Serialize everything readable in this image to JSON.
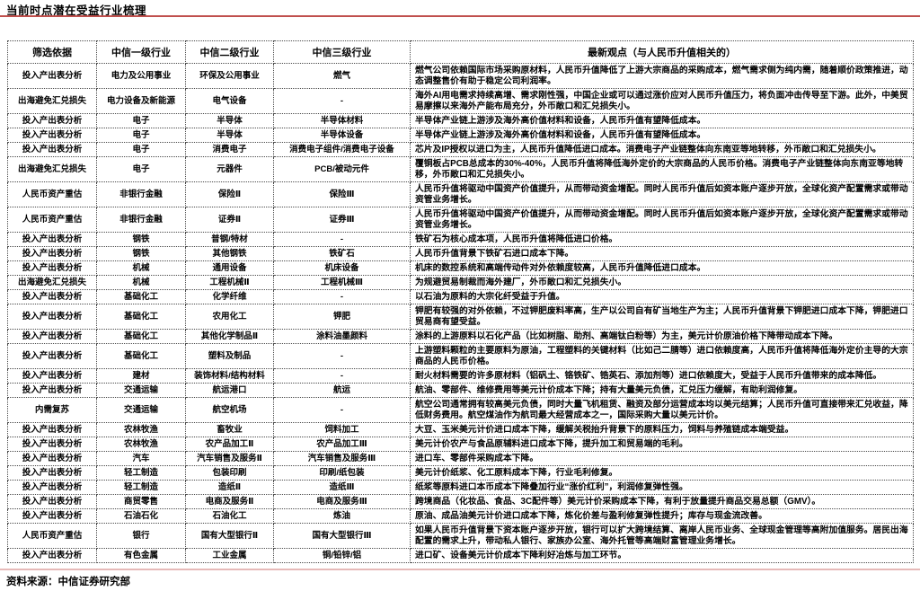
{
  "title": "当前时点潜在受益行业梳理",
  "source": "资料来源：中信证券研究部",
  "colors": {
    "rule_red": "#c0504d",
    "rule_pink": "#e6b9b8",
    "text": "#000000",
    "border": "#4a4a4a"
  },
  "table": {
    "headers": [
      "筛选依据",
      "中信一级行业",
      "中信二级行业",
      "中信三级行业",
      "最新观点（与人民币升值相关的）"
    ],
    "rows": [
      [
        "投入产出表分析",
        "电力及公用事业",
        "环保及公用事业",
        "燃气",
        "燃气公司依赖国际市场采购原材料，人民币升值降低了上游大宗商品的采购成本，燃气需求侧为纯内需，随着顺价政策推进，动态调整售价有助于稳定公司利润率。"
      ],
      [
        "出海避免汇兑损失",
        "电力设备及新能源",
        "电气设备",
        "-",
        "海外AI用电需求持续高增、需求刚性强，中国企业或可以通过涨价应对人民币升值压力，将负面冲击传导至下游。此外，中美贸易摩擦以来海外产能布局充分，外币敞口和汇兑损失小。"
      ],
      [
        "投入产出表分析",
        "电子",
        "半导体",
        "半导体材料",
        "半导体产业链上游涉及海外高价值材料和设备，人民币升值有望降低成本。"
      ],
      [
        "投入产出表分析",
        "电子",
        "半导体",
        "半导体设备",
        "半导体产业链上游涉及海外高价值材料和设备，人民币升值有望降低成本。"
      ],
      [
        "投入产出表分析",
        "电子",
        "消费电子",
        "消费电子组件/消费电子设备",
        "芯片及IP授权以进口为主，人民币升值降低进口成本。消费电子产业链整体向东南亚等地转移，外币敞口和汇兑损失小。"
      ],
      [
        "出海避免汇兑损失",
        "电子",
        "元器件",
        "PCB/被动元件",
        "覆铜板占PCB总成本的30%-40%，人民币升值将降低海外定价的大宗商品的人民币价格。消费电子产业链整体向东南亚等地转移，外币敞口和汇兑损失小。"
      ],
      [
        "人民币资产重估",
        "非银行金融",
        "保险Ⅱ",
        "保险Ⅲ",
        "人民币升值将驱动中国资产价值提升，从而带动资金增配。同时人民币升值后如资本账户逐步开放，全球化资产配置需求或带动资管业务增长。"
      ],
      [
        "人民币资产重估",
        "非银行金融",
        "证券Ⅱ",
        "证券Ⅲ",
        "人民币升值将驱动中国资产价值提升，从而带动资金增配。同时人民币升值后如资本账户逐步开放，全球化资产配置需求或带动资管业务增长。"
      ],
      [
        "投入产出表分析",
        "钢铁",
        "普钢/特材",
        "-",
        "铁矿石为核心成本项，人民币升值将降低进口价格。"
      ],
      [
        "投入产出表分析",
        "钢铁",
        "其他钢铁",
        "铁矿石",
        "人民币升值背景下铁矿石进口成本下降。"
      ],
      [
        "投入产出表分析",
        "机械",
        "通用设备",
        "机床设备",
        "机床的数控系统和高端传动件对外依赖度较高，人民币升值降低进口成本。"
      ],
      [
        "出海避免汇兑损失",
        "机械",
        "工程机械Ⅱ",
        "工程机械Ⅲ",
        "为规避贸易制裁而海外建厂，外币敞口和汇兑损失小。"
      ],
      [
        "投入产出表分析",
        "基础化工",
        "化学纤维",
        "-",
        "以石油为原料的大宗化纤受益于升值。"
      ],
      [
        "投入产出表分析",
        "基础化工",
        "农用化工",
        "钾肥",
        "钾肥有较强的对外依赖，不过钾肥废料率高，生产以公司自有矿当地生产为主；人民币升值背景下钾肥进口成本下降，钾肥进口贸易商有望受益。"
      ],
      [
        "投入产出表分析",
        "基础化工",
        "其他化学制品Ⅱ",
        "涂料油墨颜料",
        "涂料的上游原料以石化产品（比如树脂、助剂、高端钛白粉等）为主，美元计价原油价格下降带动成本下降。"
      ],
      [
        "投入产出表分析",
        "基础化工",
        "塑料及制品",
        "-",
        "上游塑料颗粒的主要原料为原油，工程塑料的关键材料（比如己二腈等）进口依赖度高，人民币升值将降低海外定价主导的大宗商品的人民币价格。"
      ],
      [
        "投入产出表分析",
        "建材",
        "装饰材料/结构材料",
        "-",
        "耐火材料需要的许多原材料（铝矾土、铬铁矿、锆英石、添加剂等）进口依赖度大，受益于人民币升值带来的成本降低。"
      ],
      [
        "投入产出表分析",
        "交通运输",
        "航运港口",
        "航运",
        "航油、零部件、维修费用等美元计价成本下降；持有大量美元负债，汇兑压力缓解，有助利润修复。"
      ],
      [
        "内需复苏",
        "交通运输",
        "航空机场",
        "-",
        "航空公司通常拥有较高美元负债，同时大量飞机租赁、融资及部分运营成本均以美元结算；人民币升值可直接带来汇兑收益，降低财务费用。航空煤油作为航司最大经营成本之一，国际采购大量以美元计价。"
      ],
      [
        "投入产出表分析",
        "农林牧渔",
        "畜牧业",
        "饲料加工",
        "大豆、玉米美元计价进口成本下降，缓解关税抬升背景下的原料压力，饲料与养殖链成本端受益。"
      ],
      [
        "投入产出表分析",
        "农林牧渔",
        "农产品加工Ⅱ",
        "农产品加工Ⅲ",
        "美元计价农产与食品原辅料进口成本下降，提升加工和贸易端的毛利。"
      ],
      [
        "投入产出表分析",
        "汽车",
        "汽车销售及服务Ⅱ",
        "汽车销售及服务Ⅲ",
        "进口车、零部件采购成本下降。"
      ],
      [
        "投入产出表分析",
        "轻工制造",
        "包装印刷",
        "印刷/纸包装",
        "美元计价纸浆、化工原料成本下降，行业毛利修复。"
      ],
      [
        "投入产出表分析",
        "轻工制造",
        "造纸Ⅱ",
        "造纸Ⅲ",
        "纸浆等原料进口本币成本下降叠加行业“涨价红利”，利润修复弹性强。"
      ],
      [
        "投入产出表分析",
        "商贸零售",
        "电商及服务Ⅱ",
        "电商及服务Ⅲ",
        "跨境商品（化妆品、食品、3C配件等）美元计价采购成本下降，有利于放量提升商品交易总额（GMV）。"
      ],
      [
        "投入产出表分析",
        "石油石化",
        "石油化工",
        "炼油",
        "原油、成品油美元计价进口成本下降，炼化价差与盈利修复弹性提升；库存与现金流改善。"
      ],
      [
        "人民币资产重估",
        "银行",
        "国有大型银行Ⅱ",
        "国有大型银行Ⅲ",
        "如果人民币升值背景下资本账户逐步开放，银行可以扩大跨境结算、离岸人民币业务、全球现金管理等高附加值服务。居民出海配置的需求上升，带动私人银行、家族办公室、海外托管等高端财富管理业务增长。"
      ],
      [
        "投入产出表分析",
        "有色金属",
        "工业金属",
        "铜/铅锌/铝",
        "进口矿、设备美元计价成本下降利好冶炼与加工环节。"
      ]
    ]
  }
}
